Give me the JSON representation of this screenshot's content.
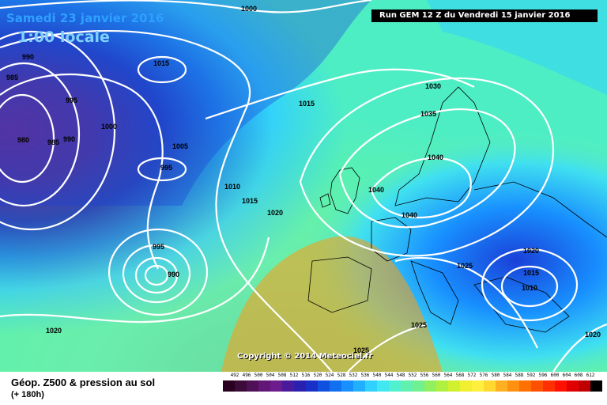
{
  "header": {
    "date": "Samedi 23 janvier 2016",
    "time": "1:00 locale",
    "run": "Run GEM 12 Z du Vendredi 15 janvier 2016"
  },
  "copyright": "Copyright © 2014 Meteociel.fr",
  "legend": {
    "title": "Géop. Z500 & pression au sol",
    "subtitle": "(+ 180h)",
    "scale": [
      "492",
      "496",
      "500",
      "504",
      "508",
      "512",
      "516",
      "520",
      "524",
      "528",
      "532",
      "536",
      "540",
      "544",
      "548",
      "552",
      "556",
      "560",
      "564",
      "568",
      "572",
      "576",
      "580",
      "584",
      "588",
      "592",
      "596",
      "600",
      "604",
      "608",
      "612"
    ],
    "colors": [
      "#2a0020",
      "#3c0b3a",
      "#4f1058",
      "#621676",
      "#6c1c8c",
      "#4a1a9c",
      "#2a20b0",
      "#1830c8",
      "#1050e0",
      "#1070f0",
      "#1890ff",
      "#20b0ff",
      "#30d0ff",
      "#40e8f0",
      "#50f0d0",
      "#60f0b0",
      "#70f090",
      "#90f060",
      "#b0f040",
      "#d0f030",
      "#f0f030",
      "#fff040",
      "#ffd830",
      "#ffb020",
      "#ff9010",
      "#ff7000",
      "#ff5000",
      "#ff3000",
      "#ff1000",
      "#e00000",
      "#c00000",
      "#000000"
    ]
  },
  "isobars": [
    {
      "text": "1000",
      "id": "a"
    },
    {
      "text": "990",
      "id": "b"
    },
    {
      "text": "985",
      "id": "c"
    },
    {
      "text": "995",
      "id": "d"
    },
    {
      "text": "1015",
      "id": "e"
    },
    {
      "text": "1000",
      "id": "f"
    },
    {
      "text": "980",
      "id": "g"
    },
    {
      "text": "985",
      "id": "h"
    },
    {
      "text": "990",
      "id": "i"
    },
    {
      "text": "1005",
      "id": "j"
    },
    {
      "text": "995",
      "id": "k"
    },
    {
      "text": "1010",
      "id": "l"
    },
    {
      "text": "1015",
      "id": "m"
    },
    {
      "text": "1020",
      "id": "n"
    },
    {
      "text": "995",
      "id": "o"
    },
    {
      "text": "990",
      "id": "p"
    },
    {
      "text": "1020",
      "id": "q"
    },
    {
      "text": "1015",
      "id": "r"
    },
    {
      "text": "1030",
      "id": "s"
    },
    {
      "text": "1035",
      "id": "t"
    },
    {
      "text": "1040",
      "id": "u"
    },
    {
      "text": "1040",
      "id": "v"
    },
    {
      "text": "1040",
      "id": "w"
    },
    {
      "text": "1025",
      "id": "x"
    },
    {
      "text": "1020",
      "id": "y"
    },
    {
      "text": "1015",
      "id": "z"
    },
    {
      "text": "1010",
      "id": "aa"
    },
    {
      "text": "1025",
      "id": "ab"
    },
    {
      "text": "1025",
      "id": "ac"
    },
    {
      "text": "1020",
      "id": "ad"
    }
  ]
}
